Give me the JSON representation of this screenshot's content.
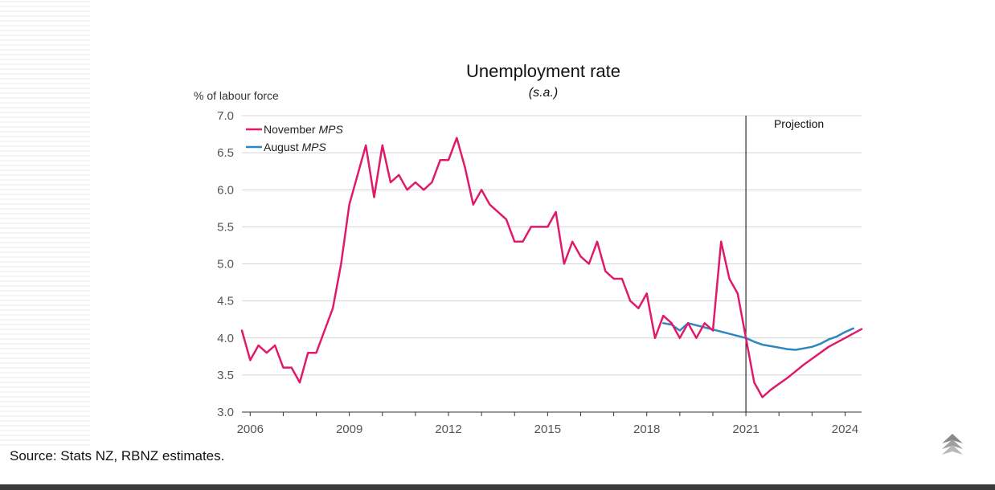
{
  "footer": {
    "source": "Source: Stats NZ, RBNZ estimates."
  },
  "chart_data": {
    "type": "line",
    "title": "Unemployment rate",
    "subtitle": "(s.a.)",
    "ylabel": "% of labour force",
    "xlabel": "",
    "ylim": [
      3.0,
      7.0
    ],
    "xlim": [
      2005.75,
      2024.5
    ],
    "yticks": [
      "7.0",
      "6.5",
      "6.0",
      "5.5",
      "5.0",
      "4.5",
      "4.0",
      "3.5",
      "3.0"
    ],
    "xticks": [
      "2006",
      "2009",
      "2012",
      "2015",
      "2018",
      "2021",
      "2024"
    ],
    "grid": true,
    "legend_position": "top-left",
    "annotation": {
      "label": "Projection",
      "x": 2021.0
    },
    "colors": {
      "november": "#e01a6b",
      "august": "#2e86c1",
      "projection_line": "#000000"
    },
    "series": [
      {
        "name": "November",
        "name_suffix": "MPS",
        "x": [
          2005.75,
          2006.0,
          2006.25,
          2006.5,
          2006.75,
          2007.0,
          2007.25,
          2007.5,
          2007.75,
          2008.0,
          2008.25,
          2008.5,
          2008.75,
          2009.0,
          2009.25,
          2009.5,
          2009.75,
          2010.0,
          2010.25,
          2010.5,
          2010.75,
          2011.0,
          2011.25,
          2011.5,
          2011.75,
          2012.0,
          2012.25,
          2012.5,
          2012.75,
          2013.0,
          2013.25,
          2013.5,
          2013.75,
          2014.0,
          2014.25,
          2014.5,
          2014.75,
          2015.0,
          2015.25,
          2015.5,
          2015.75,
          2016.0,
          2016.25,
          2016.5,
          2016.75,
          2017.0,
          2017.25,
          2017.5,
          2017.75,
          2018.0,
          2018.25,
          2018.5,
          2018.75,
          2019.0,
          2019.25,
          2019.5,
          2019.75,
          2020.0,
          2020.25,
          2020.5,
          2020.75,
          2021.0,
          2021.25,
          2021.5,
          2021.75,
          2022.0,
          2022.25,
          2022.5,
          2022.75,
          2023.0,
          2023.25,
          2023.5,
          2023.75,
          2024.0,
          2024.25,
          2024.5
        ],
        "values": [
          4.1,
          3.7,
          3.9,
          3.8,
          3.9,
          3.6,
          3.6,
          3.4,
          3.8,
          3.8,
          4.1,
          4.4,
          5.0,
          5.8,
          6.2,
          6.6,
          5.9,
          6.6,
          6.1,
          6.2,
          6.0,
          6.1,
          6.0,
          6.1,
          6.4,
          6.4,
          6.7,
          6.3,
          5.8,
          6.0,
          5.8,
          5.7,
          5.6,
          5.3,
          5.3,
          5.5,
          5.5,
          5.5,
          5.7,
          5.0,
          5.3,
          5.1,
          5.0,
          5.3,
          4.9,
          4.8,
          4.8,
          4.5,
          4.4,
          4.6,
          4.0,
          4.3,
          4.2,
          4.0,
          4.2,
          4.0,
          4.2,
          4.1,
          5.3,
          4.8,
          4.6,
          4.0,
          3.4,
          3.2,
          3.3,
          3.38,
          3.46,
          3.55,
          3.64,
          3.72,
          3.8,
          3.88,
          3.94,
          4.0,
          4.06,
          4.12
        ]
      },
      {
        "name": "August",
        "name_suffix": "MPS",
        "x": [
          2018.5,
          2018.75,
          2019.0,
          2019.25,
          2021.0,
          2021.25,
          2021.5,
          2021.75,
          2022.0,
          2022.25,
          2022.5,
          2022.75,
          2023.0,
          2023.25,
          2023.5,
          2023.75,
          2024.0,
          2024.25
        ],
        "values": [
          4.2,
          4.18,
          4.1,
          4.2,
          4.0,
          3.95,
          3.91,
          3.89,
          3.87,
          3.85,
          3.84,
          3.86,
          3.88,
          3.92,
          3.98,
          4.02,
          4.08,
          4.13
        ]
      }
    ]
  }
}
